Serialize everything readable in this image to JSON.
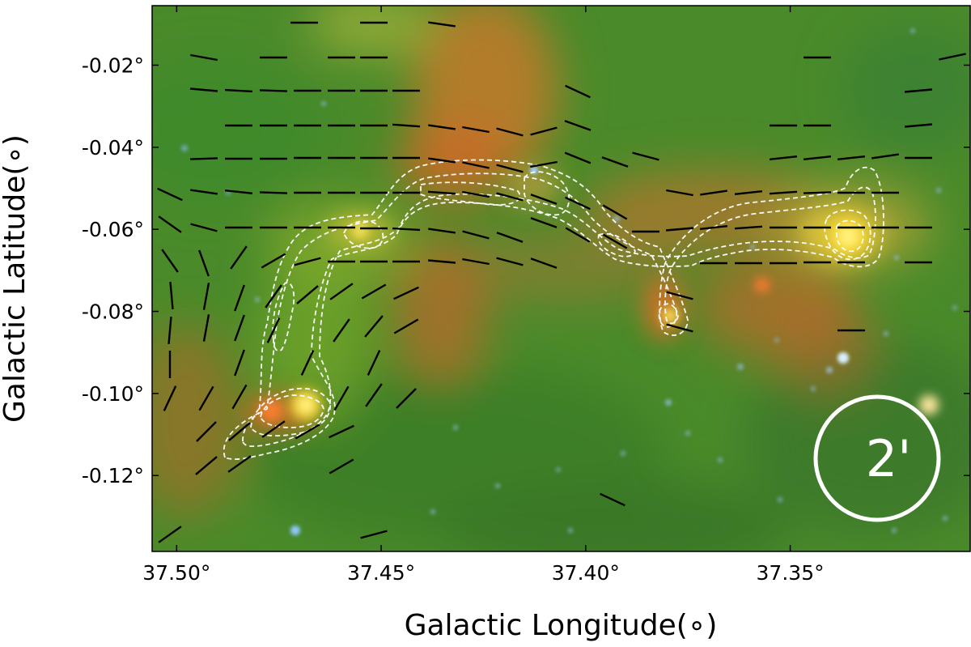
{
  "figure": {
    "xlabel": "Galactic Longitude(∘)",
    "ylabel": "Galactic Latitude(∘)",
    "x_ticks": [
      {
        "value": 37.5,
        "label": "37.50°"
      },
      {
        "value": 37.45,
        "label": "37.45°"
      },
      {
        "value": 37.4,
        "label": "37.40°"
      },
      {
        "value": 37.35,
        "label": "37.35°"
      }
    ],
    "y_ticks": [
      {
        "value": -0.02,
        "label": "-0.02°"
      },
      {
        "value": -0.04,
        "label": "-0.04°"
      },
      {
        "value": -0.06,
        "label": "-0.06°"
      },
      {
        "value": -0.08,
        "label": "-0.08°"
      },
      {
        "value": -0.1,
        "label": "-0.10°"
      },
      {
        "value": -0.12,
        "label": "-0.12°"
      }
    ],
    "x_range": [
      37.506,
      37.306
    ],
    "y_range": [
      -0.0055,
      -0.1385
    ],
    "scale_bar_label": "2'",
    "colors": {
      "background": "#4a8a2a",
      "emission_orange": "#d2702a",
      "core_yellow": "#fff080",
      "contour": "#ffffff",
      "vectors": "#000000",
      "stars": "#7fb8ff"
    }
  }
}
